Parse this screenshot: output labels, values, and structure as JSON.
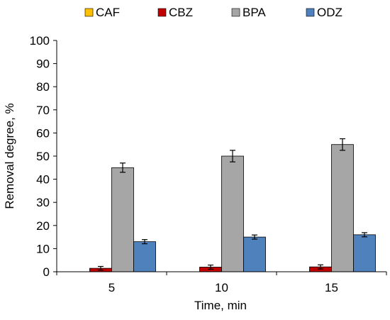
{
  "chart_data": {
    "type": "bar",
    "categories": [
      "5",
      "10",
      "15"
    ],
    "series": [
      {
        "name": "CAF",
        "color": "#FFC000",
        "values": [
          0,
          0,
          0
        ],
        "errors": [
          0,
          0,
          0
        ]
      },
      {
        "name": "CBZ",
        "color": "#C00000",
        "values": [
          1.5,
          2.0,
          2.1
        ],
        "errors": [
          0.8,
          0.9,
          0.9
        ]
      },
      {
        "name": "BPA",
        "color": "#A6A6A6",
        "values": [
          45,
          50,
          55
        ],
        "errors": [
          2.0,
          2.5,
          2.5
        ]
      },
      {
        "name": "ODZ",
        "color": "#4F81BD",
        "values": [
          13,
          15,
          16
        ],
        "errors": [
          0.9,
          0.9,
          0.9
        ]
      }
    ],
    "xlabel": "Time, min",
    "ylabel": "Removal degree, %",
    "ylim": [
      0,
      100
    ],
    "yticks": [
      "0",
      "10",
      "20",
      "30",
      "40",
      "50",
      "60",
      "70",
      "80",
      "90",
      "100"
    ],
    "grid": false,
    "legend_position": "top"
  }
}
